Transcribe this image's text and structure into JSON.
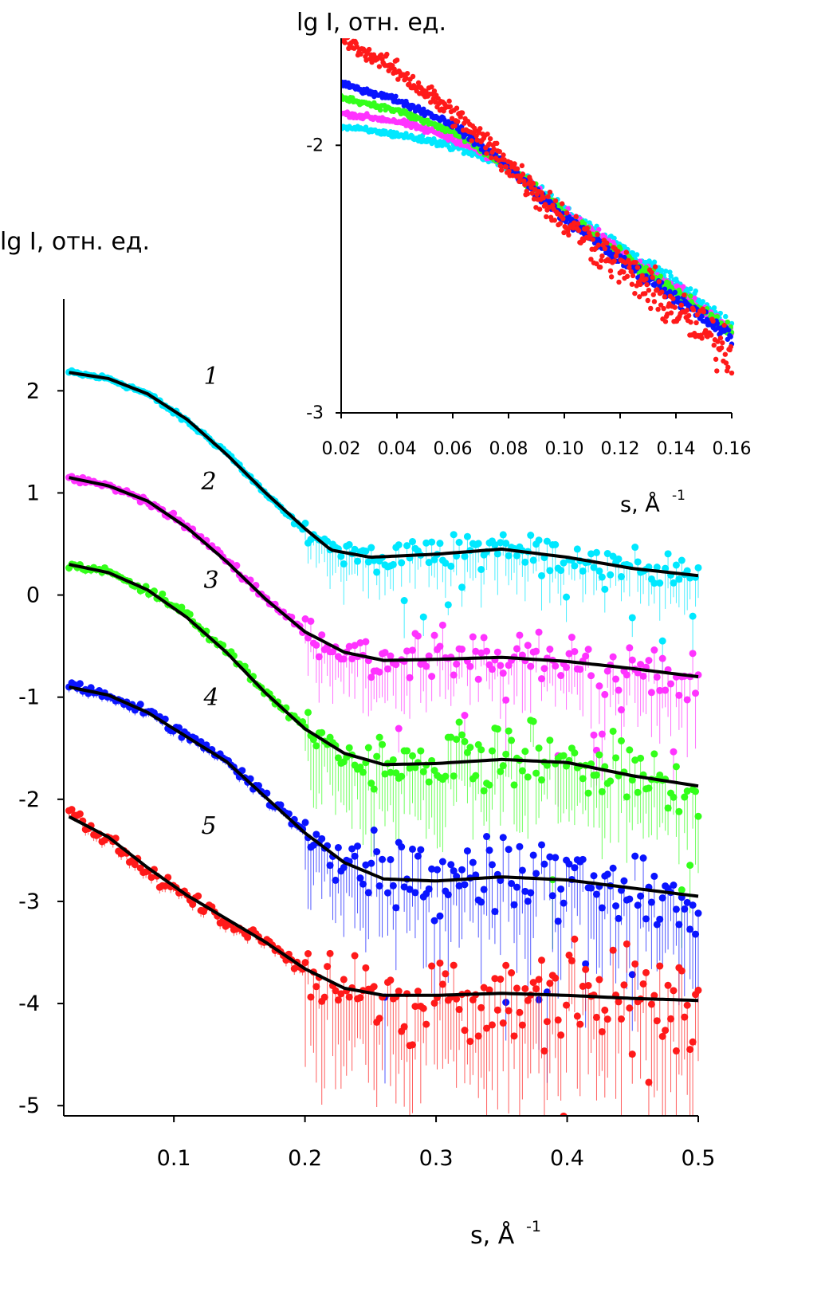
{
  "chart_data": [
    {
      "type": "scatter",
      "title": "",
      "xlabel": "s, Å",
      "xlabel_sup": "-1",
      "ylabel": "lg I, отн. ед.",
      "xlim": [
        0.016,
        0.5
      ],
      "ylim": [
        -5.1,
        2.9
      ],
      "xticks": [
        "0.1",
        "0.2",
        "0.3",
        "0.4",
        "0.5"
      ],
      "yticks": [
        "2",
        "1",
        "0",
        "-1",
        "-2",
        "-3",
        "-4",
        "-5"
      ],
      "series": [
        {
          "name": "1",
          "color": "#00e8ff",
          "points": [
            [
              0.02,
              2.18
            ],
            [
              0.05,
              2.12
            ],
            [
              0.08,
              1.97
            ],
            [
              0.11,
              1.7
            ],
            [
              0.14,
              1.4
            ],
            [
              0.17,
              0.99
            ],
            [
              0.2,
              0.62
            ],
            [
              0.23,
              0.4
            ],
            [
              0.26,
              0.38
            ],
            [
              0.3,
              0.41
            ],
            [
              0.35,
              0.44
            ],
            [
              0.4,
              0.36
            ],
            [
              0.45,
              0.26
            ],
            [
              0.5,
              0.2
            ]
          ],
          "fit": [
            [
              0.02,
              2.18
            ],
            [
              0.05,
              2.12
            ],
            [
              0.08,
              1.97
            ],
            [
              0.11,
              1.72
            ],
            [
              0.14,
              1.38
            ],
            [
              0.17,
              1.0
            ],
            [
              0.2,
              0.65
            ],
            [
              0.22,
              0.44
            ],
            [
              0.25,
              0.37
            ],
            [
              0.3,
              0.4
            ],
            [
              0.35,
              0.45
            ],
            [
              0.4,
              0.37
            ],
            [
              0.45,
              0.26
            ],
            [
              0.5,
              0.19
            ]
          ]
        },
        {
          "name": "2",
          "color": "#ff33ff",
          "points": [
            [
              0.02,
              1.15
            ],
            [
              0.05,
              1.07
            ],
            [
              0.08,
              0.92
            ],
            [
              0.11,
              0.67
            ],
            [
              0.14,
              0.35
            ],
            [
              0.17,
              -0.03
            ],
            [
              0.2,
              -0.36
            ],
            [
              0.23,
              -0.57
            ],
            [
              0.26,
              -0.65
            ],
            [
              0.3,
              -0.62
            ],
            [
              0.35,
              -0.6
            ],
            [
              0.4,
              -0.65
            ],
            [
              0.45,
              -0.72
            ],
            [
              0.5,
              -0.8
            ]
          ],
          "fit": [
            [
              0.02,
              1.15
            ],
            [
              0.05,
              1.07
            ],
            [
              0.08,
              0.92
            ],
            [
              0.11,
              0.66
            ],
            [
              0.14,
              0.33
            ],
            [
              0.17,
              -0.04
            ],
            [
              0.2,
              -0.36
            ],
            [
              0.23,
              -0.56
            ],
            [
              0.26,
              -0.64
            ],
            [
              0.3,
              -0.63
            ],
            [
              0.35,
              -0.61
            ],
            [
              0.4,
              -0.65
            ],
            [
              0.45,
              -0.72
            ],
            [
              0.5,
              -0.8
            ]
          ]
        },
        {
          "name": "3",
          "color": "#33ff1a",
          "points": [
            [
              0.02,
              0.3
            ],
            [
              0.05,
              0.22
            ],
            [
              0.08,
              0.06
            ],
            [
              0.11,
              -0.2
            ],
            [
              0.14,
              -0.55
            ],
            [
              0.17,
              -0.95
            ],
            [
              0.2,
              -1.3
            ],
            [
              0.23,
              -1.56
            ],
            [
              0.26,
              -1.67
            ],
            [
              0.3,
              -1.66
            ],
            [
              0.35,
              -1.61
            ],
            [
              0.4,
              -1.65
            ],
            [
              0.45,
              -1.77
            ],
            [
              0.5,
              -1.87
            ]
          ],
          "fit": [
            [
              0.02,
              0.3
            ],
            [
              0.05,
              0.22
            ],
            [
              0.08,
              0.05
            ],
            [
              0.11,
              -0.22
            ],
            [
              0.14,
              -0.56
            ],
            [
              0.17,
              -0.96
            ],
            [
              0.2,
              -1.31
            ],
            [
              0.23,
              -1.55
            ],
            [
              0.26,
              -1.66
            ],
            [
              0.3,
              -1.65
            ],
            [
              0.35,
              -1.61
            ],
            [
              0.4,
              -1.64
            ],
            [
              0.45,
              -1.77
            ],
            [
              0.5,
              -1.87
            ]
          ]
        },
        {
          "name": "4",
          "color": "#0a14ff",
          "points": [
            [
              0.02,
              -0.9
            ],
            [
              0.05,
              -0.98
            ],
            [
              0.08,
              -1.15
            ],
            [
              0.11,
              -1.38
            ],
            [
              0.14,
              -1.6
            ],
            [
              0.17,
              -1.97
            ],
            [
              0.2,
              -2.32
            ],
            [
              0.23,
              -2.62
            ],
            [
              0.26,
              -2.79
            ],
            [
              0.3,
              -2.8
            ],
            [
              0.35,
              -2.76
            ],
            [
              0.4,
              -2.8
            ],
            [
              0.45,
              -2.87
            ],
            [
              0.5,
              -2.95
            ]
          ],
          "fit": [
            [
              0.02,
              -0.9
            ],
            [
              0.05,
              -0.98
            ],
            [
              0.08,
              -1.15
            ],
            [
              0.11,
              -1.39
            ],
            [
              0.14,
              -1.63
            ],
            [
              0.17,
              -1.98
            ],
            [
              0.2,
              -2.33
            ],
            [
              0.23,
              -2.62
            ],
            [
              0.26,
              -2.78
            ],
            [
              0.3,
              -2.8
            ],
            [
              0.35,
              -2.76
            ],
            [
              0.4,
              -2.79
            ],
            [
              0.45,
              -2.87
            ],
            [
              0.5,
              -2.95
            ]
          ]
        },
        {
          "name": "5",
          "color": "#ff1a1a",
          "points": [
            [
              0.02,
              -2.1
            ],
            [
              0.05,
              -2.4
            ],
            [
              0.08,
              -2.72
            ],
            [
              0.11,
              -2.95
            ],
            [
              0.14,
              -3.2
            ],
            [
              0.17,
              -3.4
            ],
            [
              0.2,
              -3.65
            ],
            [
              0.23,
              -3.85
            ],
            [
              0.26,
              -3.93
            ],
            [
              0.3,
              -3.92
            ],
            [
              0.35,
              -3.9
            ],
            [
              0.4,
              -3.92
            ],
            [
              0.45,
              -3.95
            ],
            [
              0.5,
              -3.97
            ]
          ],
          "fit": [
            [
              0.02,
              -2.17
            ],
            [
              0.05,
              -2.37
            ],
            [
              0.08,
              -2.67
            ],
            [
              0.11,
              -2.94
            ],
            [
              0.14,
              -3.17
            ],
            [
              0.17,
              -3.4
            ],
            [
              0.2,
              -3.66
            ],
            [
              0.23,
              -3.85
            ],
            [
              0.26,
              -3.92
            ],
            [
              0.3,
              -3.92
            ],
            [
              0.35,
              -3.9
            ],
            [
              0.4,
              -3.92
            ],
            [
              0.45,
              -3.95
            ],
            [
              0.5,
              -3.97
            ]
          ]
        }
      ],
      "fit_color": "#000000"
    },
    {
      "type": "scatter",
      "title": "",
      "xlabel": "s, Å",
      "xlabel_sup": "-1",
      "ylabel": "lg I, отн. ед.",
      "xlim": [
        0.02,
        0.16
      ],
      "ylim": [
        -3,
        -1.6
      ],
      "xticks": [
        "0.02",
        "0.04",
        "0.06",
        "0.08",
        "0.10",
        "0.12",
        "0.14",
        "0.16"
      ],
      "yticks": [
        "-2",
        "-3"
      ],
      "series": [
        {
          "name": "1",
          "color": "#00e8ff",
          "points": [
            [
              0.02,
              -1.93
            ],
            [
              0.04,
              -1.96
            ],
            [
              0.06,
              -2.0
            ],
            [
              0.08,
              -2.08
            ],
            [
              0.1,
              -2.24
            ],
            [
              0.12,
              -2.38
            ],
            [
              0.14,
              -2.52
            ],
            [
              0.16,
              -2.68
            ]
          ]
        },
        {
          "name": "2",
          "color": "#ff33ff",
          "points": [
            [
              0.02,
              -1.88
            ],
            [
              0.04,
              -1.91
            ],
            [
              0.06,
              -1.97
            ],
            [
              0.08,
              -2.08
            ],
            [
              0.1,
              -2.25
            ],
            [
              0.12,
              -2.4
            ],
            [
              0.14,
              -2.54
            ],
            [
              0.16,
              -2.7
            ]
          ]
        },
        {
          "name": "3",
          "color": "#33ff1a",
          "points": [
            [
              0.02,
              -1.82
            ],
            [
              0.04,
              -1.87
            ],
            [
              0.06,
              -1.95
            ],
            [
              0.08,
              -2.08
            ],
            [
              0.1,
              -2.26
            ],
            [
              0.12,
              -2.41
            ],
            [
              0.14,
              -2.55
            ],
            [
              0.16,
              -2.7
            ]
          ]
        },
        {
          "name": "4",
          "color": "#0a14ff",
          "points": [
            [
              0.02,
              -1.77
            ],
            [
              0.04,
              -1.83
            ],
            [
              0.06,
              -1.92
            ],
            [
              0.08,
              -2.08
            ],
            [
              0.1,
              -2.27
            ],
            [
              0.12,
              -2.43
            ],
            [
              0.14,
              -2.57
            ],
            [
              0.16,
              -2.72
            ]
          ]
        },
        {
          "name": "5",
          "color": "#ff1a1a",
          "points": [
            [
              0.02,
              -1.6
            ],
            [
              0.04,
              -1.72
            ],
            [
              0.06,
              -1.88
            ],
            [
              0.08,
              -2.07
            ],
            [
              0.1,
              -2.28
            ],
            [
              0.12,
              -2.45
            ],
            [
              0.14,
              -2.62
            ],
            [
              0.16,
              -2.78
            ]
          ]
        }
      ]
    }
  ]
}
